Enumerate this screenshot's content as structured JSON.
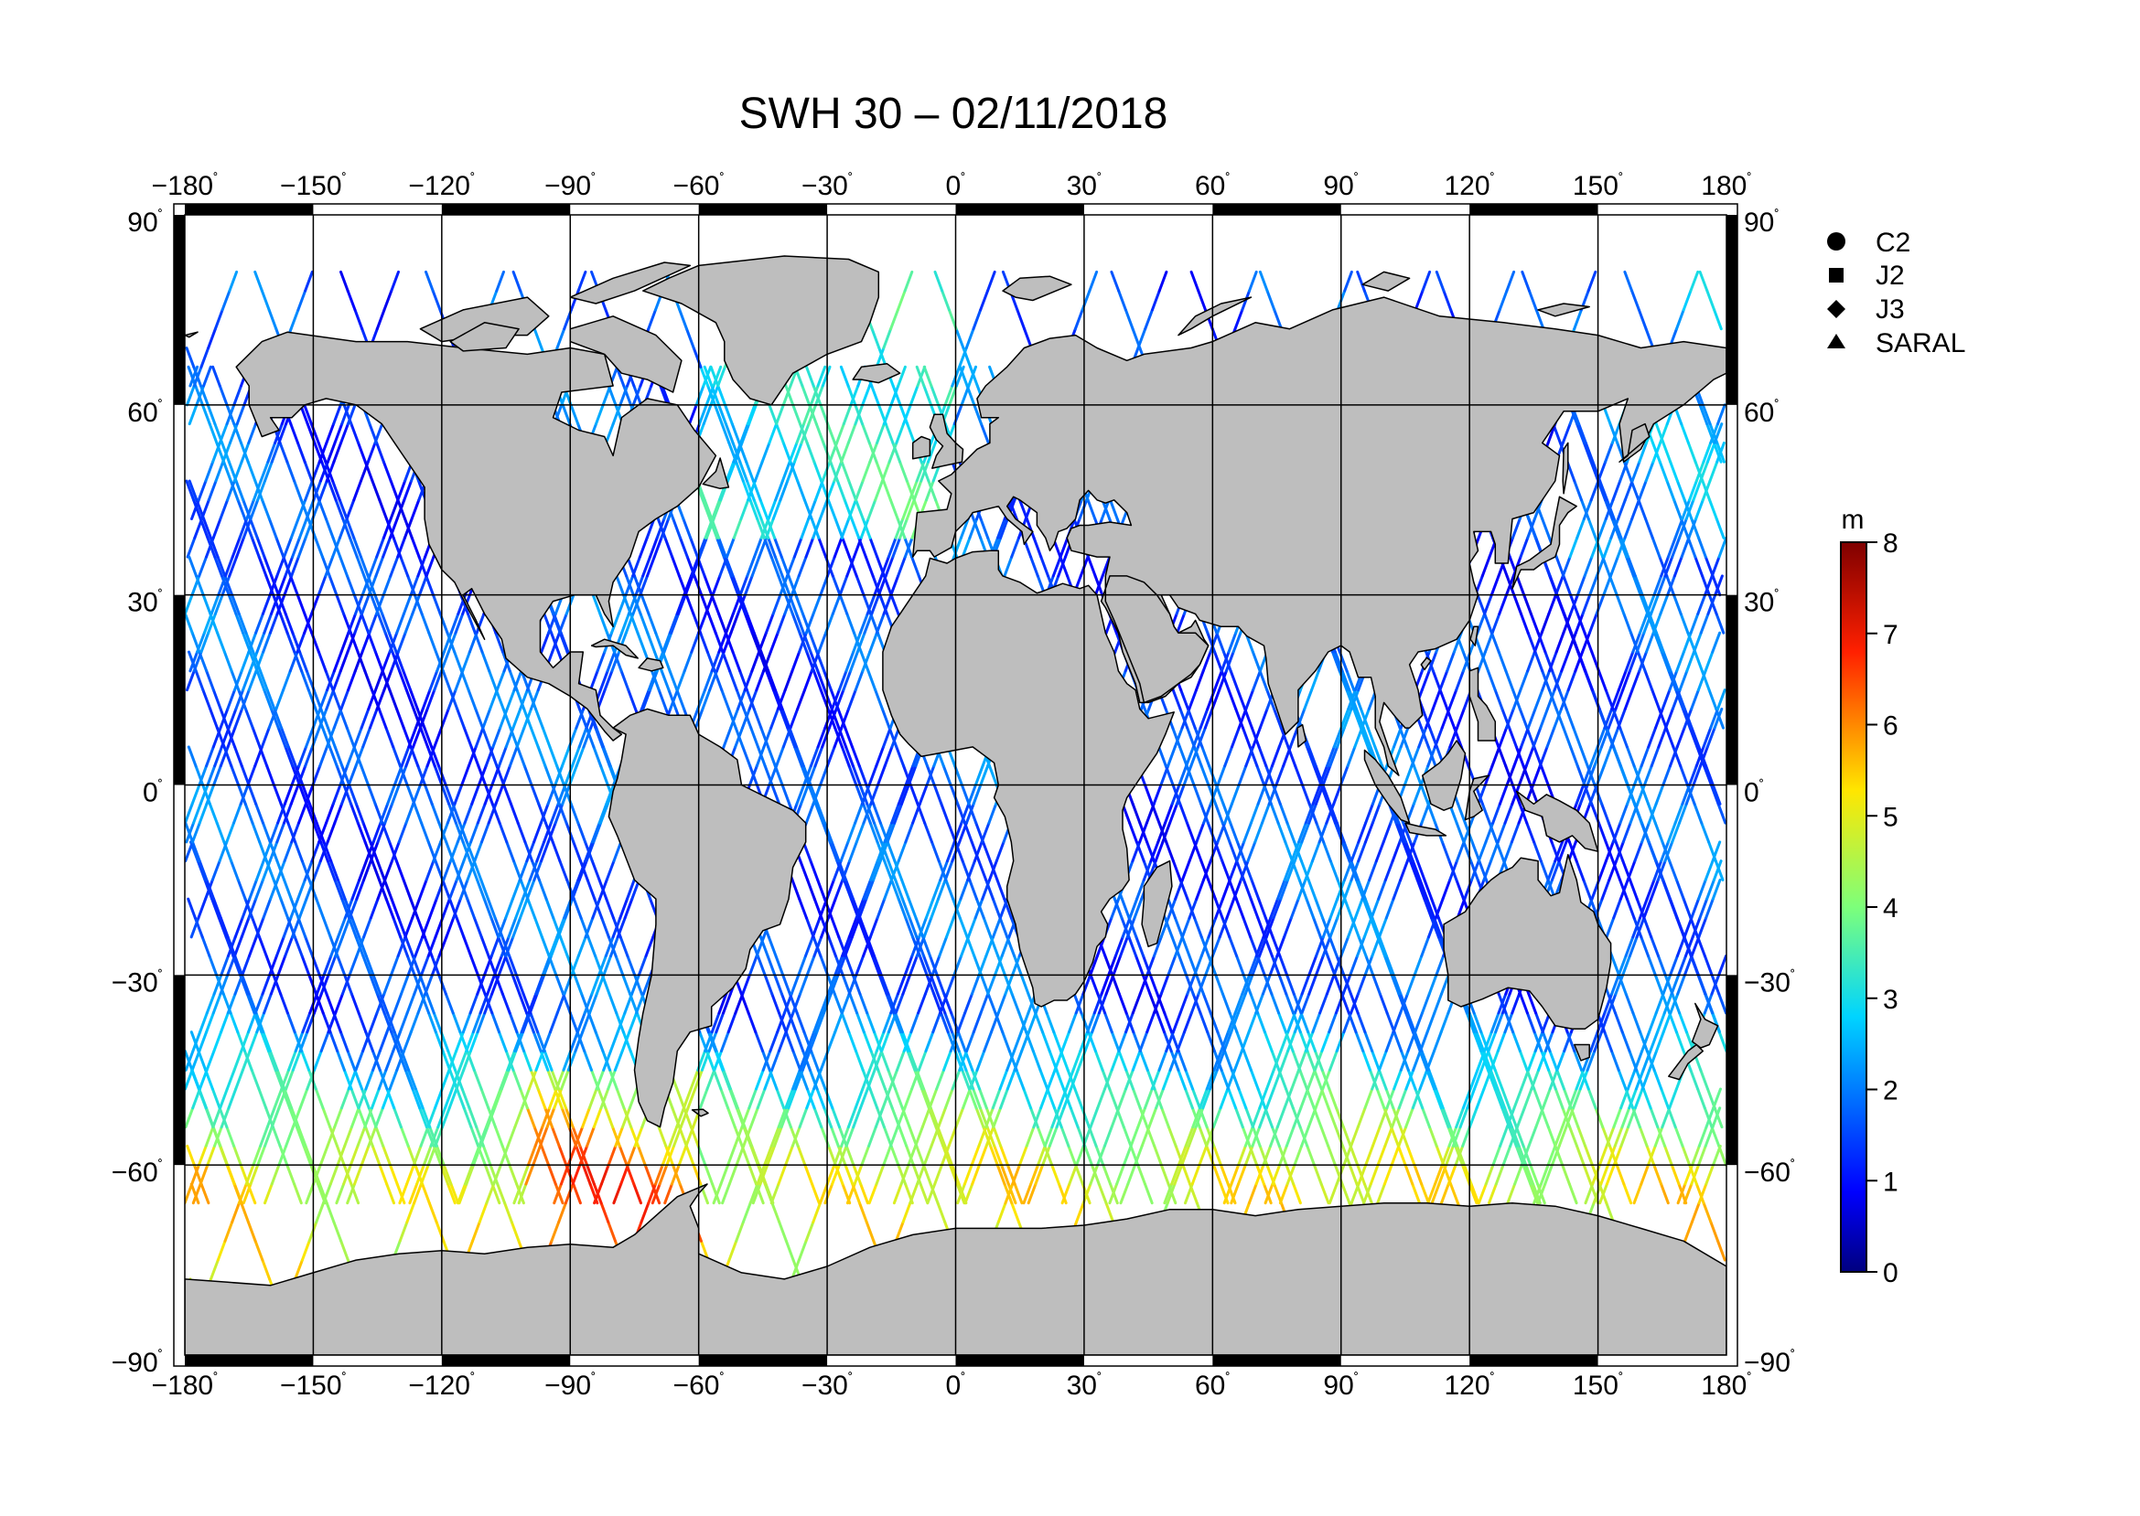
{
  "title": "SWH 30 – 02/11/2018",
  "map": {
    "projection": "equirectangular",
    "lon_range": [
      -180,
      180
    ],
    "lat_range": [
      -90,
      90
    ],
    "grid_step_lon": 30,
    "grid_step_lat": 30,
    "land_color": "#bebebe",
    "ocean_color": "#ffffff",
    "lon_tick_labels": [
      "−180",
      "−150",
      "−120",
      "−90",
      "−60",
      "−30",
      "0",
      "30",
      "60",
      "90",
      "120",
      "150",
      "180"
    ],
    "lat_tick_labels": [
      "90",
      "60",
      "30",
      "0",
      "−30",
      "−60",
      "−90"
    ],
    "degree_symbol": "˚"
  },
  "legend": {
    "items": [
      {
        "label": "C2",
        "icon": "circle"
      },
      {
        "label": "J2",
        "icon": "square"
      },
      {
        "label": "J3",
        "icon": "diamond"
      },
      {
        "label": "SARAL",
        "icon": "triangle"
      }
    ]
  },
  "colorbar": {
    "unit": "m",
    "min": 0,
    "max": 8,
    "tick_labels": [
      "0",
      "1",
      "2",
      "3",
      "4",
      "5",
      "6",
      "7",
      "8"
    ],
    "colormap": "jet"
  },
  "chart_data": {
    "type": "scatter",
    "title": "SWH 30 – 02/11/2018",
    "variable": "SWH",
    "unit": "m",
    "xlim": [
      -180,
      180
    ],
    "ylim": [
      -90,
      90
    ],
    "x_ticks": [
      -180,
      -150,
      -120,
      -90,
      -60,
      -30,
      0,
      30,
      60,
      90,
      120,
      150,
      180
    ],
    "y_ticks": [
      -90,
      -60,
      -30,
      0,
      30,
      60,
      90
    ],
    "grid": true,
    "legend_placement": "right",
    "series": [
      {
        "name": "C2"
      },
      {
        "name": "J2"
      },
      {
        "name": "J3"
      },
      {
        "name": "SARAL"
      }
    ]
  }
}
